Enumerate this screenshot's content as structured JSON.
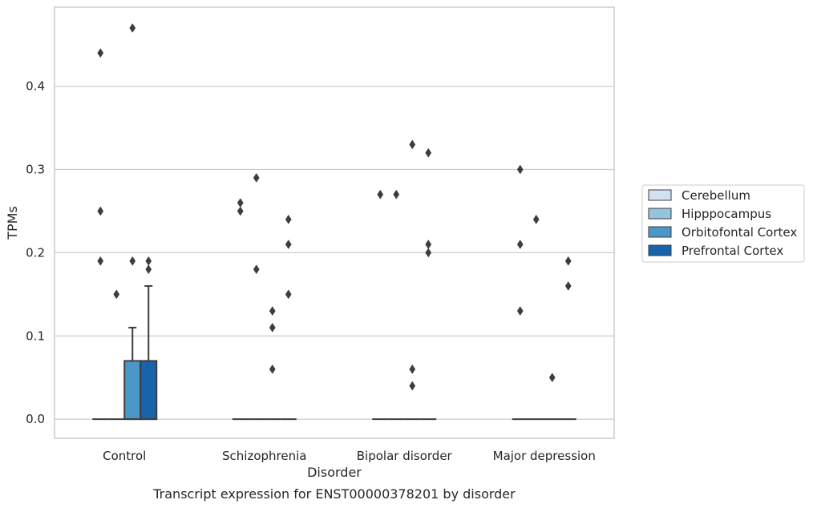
{
  "chart_data": {
    "type": "box",
    "xlabel": "Disorder",
    "ylabel": "TPMs",
    "caption": "Transcript expression for ENST00000378201 by disorder",
    "ylim": [
      -0.023,
      0.495
    ],
    "yticks": [
      "0.0",
      "0.1",
      "0.2",
      "0.3",
      "0.4"
    ],
    "ytick_values": [
      0.0,
      0.1,
      0.2,
      0.3,
      0.4
    ],
    "grid": "horizontal",
    "legend_position": "right",
    "categories": [
      "Control",
      "Schizophrenia",
      "Bipolar disorder",
      "Major depression"
    ],
    "series": [
      {
        "name": "Cerebellum",
        "color": "#d0e1f2",
        "boxes": [
          {
            "q1": 0,
            "median": 0,
            "q3": 0,
            "whisker_low": 0,
            "whisker_high": 0,
            "outliers": [
              0.44,
              0.25,
              0.19
            ]
          },
          {
            "q1": 0,
            "median": 0,
            "q3": 0,
            "whisker_low": 0,
            "whisker_high": 0,
            "outliers": [
              0.26,
              0.25
            ]
          },
          {
            "q1": 0,
            "median": 0,
            "q3": 0,
            "whisker_low": 0,
            "whisker_high": 0,
            "outliers": [
              0.27
            ]
          },
          {
            "q1": 0,
            "median": 0,
            "q3": 0,
            "whisker_low": 0,
            "whisker_high": 0,
            "outliers": [
              0.3,
              0.21,
              0.13
            ]
          }
        ]
      },
      {
        "name": "Hipppocampus",
        "color": "#94c4df",
        "boxes": [
          {
            "q1": 0,
            "median": 0,
            "q3": 0,
            "whisker_low": 0,
            "whisker_high": 0,
            "outliers": [
              0.15
            ]
          },
          {
            "q1": 0,
            "median": 0,
            "q3": 0,
            "whisker_low": 0,
            "whisker_high": 0,
            "outliers": [
              0.29,
              0.18
            ]
          },
          {
            "q1": 0,
            "median": 0,
            "q3": 0,
            "whisker_low": 0,
            "whisker_high": 0,
            "outliers": [
              0.27
            ]
          },
          {
            "q1": 0,
            "median": 0,
            "q3": 0,
            "whisker_low": 0,
            "whisker_high": 0,
            "outliers": [
              0.24
            ]
          }
        ]
      },
      {
        "name": "Orbitofontal Cortex",
        "color": "#4a98c9",
        "boxes": [
          {
            "q1": 0,
            "median": 0,
            "q3": 0.07,
            "whisker_low": 0,
            "whisker_high": 0.11,
            "outliers": [
              0.47,
              0.19
            ]
          },
          {
            "q1": 0,
            "median": 0,
            "q3": 0,
            "whisker_low": 0,
            "whisker_high": 0,
            "outliers": [
              0.13,
              0.11,
              0.06
            ]
          },
          {
            "q1": 0,
            "median": 0,
            "q3": 0,
            "whisker_low": 0,
            "whisker_high": 0,
            "outliers": [
              0.33,
              0.06,
              0.04
            ]
          },
          {
            "q1": 0,
            "median": 0,
            "q3": 0,
            "whisker_low": 0,
            "whisker_high": 0,
            "outliers": [
              0.05
            ]
          }
        ]
      },
      {
        "name": "Prefrontal Cortex",
        "color": "#1764ab",
        "boxes": [
          {
            "q1": 0,
            "median": 0,
            "q3": 0.07,
            "whisker_low": 0,
            "whisker_high": 0.16,
            "outliers": [
              0.19,
              0.18
            ]
          },
          {
            "q1": 0,
            "median": 0,
            "q3": 0,
            "whisker_low": 0,
            "whisker_high": 0,
            "outliers": [
              0.24,
              0.21,
              0.15
            ]
          },
          {
            "q1": 0,
            "median": 0,
            "q3": 0,
            "whisker_low": 0,
            "whisker_high": 0,
            "outliers": [
              0.32,
              0.21,
              0.2
            ]
          },
          {
            "q1": 0,
            "median": 0,
            "q3": 0,
            "whisker_low": 0,
            "whisker_high": 0,
            "outliers": [
              0.19,
              0.16
            ]
          }
        ]
      }
    ]
  }
}
